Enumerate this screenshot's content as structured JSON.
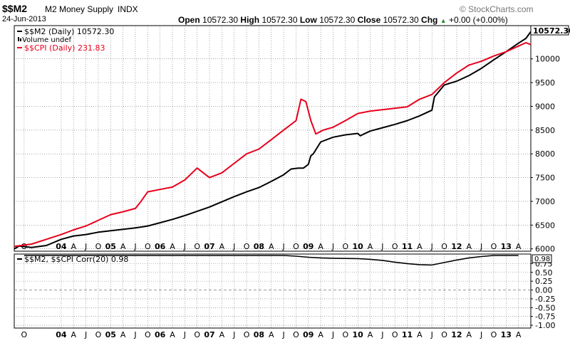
{
  "header": {
    "symbol": "$$M2",
    "name": "M2 Money Supply",
    "exchange": "INDX",
    "date": "24-Jun-2013",
    "brand": "© StockCharts.com",
    "open_label": "Open",
    "open": "10572.30",
    "high_label": "High",
    "high": "10572.30",
    "low_label": "Low",
    "low": "10572.30",
    "close_label": "Close",
    "close": "10572.30",
    "chg_label": "Chg",
    "chg": "+0.00 (+0.00%)",
    "chg_arrow": "▲"
  },
  "legend": {
    "m2": "$$M2 (Daily) 10572.30",
    "volume": "Volume undef",
    "cpi": "$$CPI (Daily) 231.83"
  },
  "price_box": "10572.30",
  "corr_legend": "$$M2, $$CPI Corr(20) 0.98",
  "corr_box": "0.98",
  "colors": {
    "m2": "#000000",
    "cpi": "#e8001c",
    "corr": "#000000",
    "zero_line": "#999999",
    "grid": "#000000"
  },
  "chart_data": [
    {
      "type": "line",
      "title": "$$M2 M2 Money Supply INDX",
      "x_tick_labels": [
        "O",
        "04",
        "A",
        "J",
        "O",
        "05",
        "A",
        "J",
        "O",
        "06",
        "A",
        "J",
        "O",
        "07",
        "A",
        "J",
        "O",
        "08",
        "A",
        "J",
        "O",
        "09",
        "A",
        "J",
        "O",
        "10",
        "A",
        "J",
        "O",
        "11",
        "A",
        "J",
        "O",
        "12",
        "A",
        "J",
        "O",
        "13",
        "A"
      ],
      "x_tick_index": [
        -0.75,
        0,
        0.25,
        0.5,
        0.75,
        1,
        1.25,
        1.5,
        1.75,
        2,
        2.25,
        2.5,
        2.75,
        3,
        3.25,
        3.5,
        3.75,
        4,
        4.25,
        4.5,
        4.75,
        5,
        5.25,
        5.5,
        5.75,
        6,
        6.25,
        6.5,
        6.75,
        7,
        7.25,
        7.5,
        7.75,
        8,
        8.25,
        8.5,
        8.75,
        9,
        9.25
      ],
      "x_note": "x = years since Jan 2004",
      "xlim": [
        -0.95,
        9.5
      ],
      "ylim": [
        5950,
        10700
      ],
      "y_ticks": [
        6000,
        6500,
        7000,
        7500,
        8000,
        8500,
        9000,
        9500,
        10000
      ],
      "series": [
        {
          "name": "$$M2 (Daily)",
          "color": "#000000",
          "points": [
            [
              -0.95,
              6000
            ],
            [
              -0.85,
              6060
            ],
            [
              -0.6,
              6030
            ],
            [
              -0.3,
              6070
            ],
            [
              0,
              6200
            ],
            [
              0.25,
              6270
            ],
            [
              0.5,
              6300
            ],
            [
              0.75,
              6350
            ],
            [
              1,
              6380
            ],
            [
              1.25,
              6410
            ],
            [
              1.5,
              6440
            ],
            [
              1.75,
              6480
            ],
            [
              2,
              6550
            ],
            [
              2.25,
              6620
            ],
            [
              2.5,
              6700
            ],
            [
              2.75,
              6790
            ],
            [
              3,
              6880
            ],
            [
              3.25,
              6990
            ],
            [
              3.5,
              7100
            ],
            [
              3.75,
              7200
            ],
            [
              4,
              7290
            ],
            [
              4.25,
              7420
            ],
            [
              4.5,
              7560
            ],
            [
              4.65,
              7680
            ],
            [
              4.8,
              7700
            ],
            [
              4.9,
              7700
            ],
            [
              5,
              7780
            ],
            [
              5.05,
              7960
            ],
            [
              5.1,
              8000
            ],
            [
              5.25,
              8250
            ],
            [
              5.5,
              8350
            ],
            [
              5.75,
              8400
            ],
            [
              6,
              8430
            ],
            [
              6.05,
              8380
            ],
            [
              6.25,
              8480
            ],
            [
              6.5,
              8550
            ],
            [
              6.75,
              8620
            ],
            [
              7,
              8700
            ],
            [
              7.25,
              8800
            ],
            [
              7.5,
              8920
            ],
            [
              7.55,
              9200
            ],
            [
              7.75,
              9450
            ],
            [
              8,
              9530
            ],
            [
              8.25,
              9650
            ],
            [
              8.5,
              9800
            ],
            [
              8.75,
              9980
            ],
            [
              9,
              10150
            ],
            [
              9.25,
              10330
            ],
            [
              9.4,
              10430
            ],
            [
              9.5,
              10572.3
            ]
          ]
        },
        {
          "name": "$$CPI (Daily)",
          "color": "#e8001c",
          "points": [
            [
              -0.95,
              6050
            ],
            [
              -0.6,
              6100
            ],
            [
              -0.3,
              6200
            ],
            [
              0,
              6300
            ],
            [
              0.25,
              6400
            ],
            [
              0.5,
              6480
            ],
            [
              0.75,
              6600
            ],
            [
              1,
              6720
            ],
            [
              1.25,
              6780
            ],
            [
              1.5,
              6850
            ],
            [
              1.6,
              6980
            ],
            [
              1.75,
              7200
            ],
            [
              2,
              7250
            ],
            [
              2.25,
              7300
            ],
            [
              2.5,
              7450
            ],
            [
              2.75,
              7700
            ],
            [
              3,
              7500
            ],
            [
              3.25,
              7600
            ],
            [
              3.5,
              7800
            ],
            [
              3.75,
              8000
            ],
            [
              4,
              8100
            ],
            [
              4.25,
              8300
            ],
            [
              4.5,
              8500
            ],
            [
              4.75,
              8700
            ],
            [
              4.85,
              9150
            ],
            [
              4.95,
              9100
            ],
            [
              5.05,
              8700
            ],
            [
              5.15,
              8420
            ],
            [
              5.3,
              8500
            ],
            [
              5.5,
              8560
            ],
            [
              5.75,
              8700
            ],
            [
              6,
              8850
            ],
            [
              6.25,
              8900
            ],
            [
              6.5,
              8930
            ],
            [
              6.75,
              8960
            ],
            [
              7,
              8990
            ],
            [
              7.25,
              9150
            ],
            [
              7.5,
              9250
            ],
            [
              7.75,
              9500
            ],
            [
              8,
              9700
            ],
            [
              8.25,
              9870
            ],
            [
              8.5,
              9950
            ],
            [
              8.75,
              10060
            ],
            [
              9,
              10150
            ],
            [
              9.25,
              10270
            ],
            [
              9.4,
              10340
            ],
            [
              9.5,
              10300
            ]
          ]
        }
      ]
    },
    {
      "type": "line",
      "title": "$$M2, $$CPI Corr(20) 0.98",
      "xlim": [
        -0.95,
        9.5
      ],
      "ylim": [
        -1.08,
        1.02
      ],
      "y_ticks": [
        -1,
        -0.75,
        -0.5,
        -0.25,
        0,
        0.25,
        0.5,
        0.75
      ],
      "y_tick_labels": [
        "-1.00",
        "-0.75",
        "-0.50",
        "-0.25",
        "0.00",
        "0.25",
        "0.50",
        "0.75"
      ],
      "series": [
        {
          "name": "$$M2, $$CPI Corr(20)",
          "color": "#000000",
          "points": [
            [
              -0.75,
              0.98
            ],
            [
              4.5,
              0.98
            ],
            [
              4.75,
              0.96
            ],
            [
              5,
              0.93
            ],
            [
              5.25,
              0.91
            ],
            [
              5.5,
              0.9
            ],
            [
              6,
              0.89
            ],
            [
              6.25,
              0.87
            ],
            [
              6.5,
              0.84
            ],
            [
              6.75,
              0.79
            ],
            [
              7,
              0.75
            ],
            [
              7.25,
              0.72
            ],
            [
              7.5,
              0.71
            ],
            [
              7.75,
              0.78
            ],
            [
              8,
              0.85
            ],
            [
              8.25,
              0.91
            ],
            [
              8.5,
              0.95
            ],
            [
              8.75,
              0.98
            ],
            [
              9.25,
              0.98
            ]
          ]
        }
      ]
    }
  ]
}
